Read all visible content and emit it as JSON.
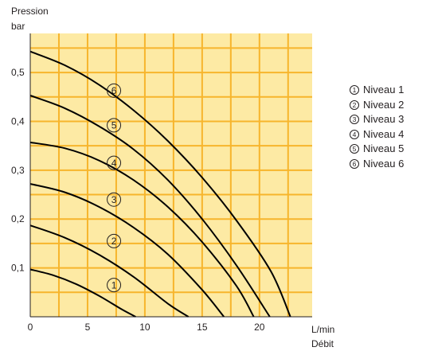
{
  "colors": {
    "plot_background": "#fdeaa4",
    "grid": "#f7b52c",
    "axis": "#231f20",
    "curve": "#000000"
  },
  "chart_data": {
    "type": "line",
    "ylabel_line1": "Pression",
    "ylabel_line2": "bar",
    "xlabel_line1": "L/min",
    "xlabel_line2": "Débit",
    "xlim": [
      0,
      24.6
    ],
    "ylim": [
      0,
      0.58
    ],
    "x_ticks": [
      {
        "value": 0,
        "label": "0"
      },
      {
        "value": 5,
        "label": "5"
      },
      {
        "value": 10,
        "label": "10"
      },
      {
        "value": 15,
        "label": "15"
      },
      {
        "value": 20,
        "label": "20"
      }
    ],
    "y_ticks": [
      {
        "value": 0.1,
        "label": "0,1"
      },
      {
        "value": 0.2,
        "label": "0,2"
      },
      {
        "value": 0.3,
        "label": "0,3"
      },
      {
        "value": 0.4,
        "label": "0,4"
      },
      {
        "value": 0.5,
        "label": "0,5"
      }
    ],
    "grid_x_step": 2.5,
    "grid_y_step": 0.05,
    "grid": true,
    "legend_position": "right",
    "series": [
      {
        "marker": "1",
        "name": "Niveau 1",
        "x": [
          0,
          2,
          4,
          6,
          8,
          9.2
        ],
        "y": [
          0.097,
          0.085,
          0.067,
          0.043,
          0.015,
          0
        ],
        "label_at": [
          7.3,
          0.065
        ]
      },
      {
        "marker": "2",
        "name": "Niveau 2",
        "x": [
          0,
          3,
          6,
          9,
          12,
          13.8
        ],
        "y": [
          0.187,
          0.162,
          0.127,
          0.082,
          0.027,
          0
        ],
        "label_at": [
          7.3,
          0.155
        ]
      },
      {
        "marker": "3",
        "name": "Niveau 3",
        "x": [
          0,
          3,
          6,
          9,
          12,
          15,
          16.9
        ],
        "y": [
          0.272,
          0.255,
          0.225,
          0.183,
          0.128,
          0.055,
          0
        ],
        "label_at": [
          7.3,
          0.24
        ]
      },
      {
        "marker": "4",
        "name": "Niveau 4",
        "x": [
          0,
          3,
          6,
          9,
          12,
          15,
          18,
          19.5
        ],
        "y": [
          0.357,
          0.345,
          0.32,
          0.28,
          0.225,
          0.153,
          0.063,
          0
        ],
        "label_at": [
          7.3,
          0.315
        ]
      },
      {
        "marker": "5",
        "name": "Niveau 5",
        "x": [
          0,
          3,
          6,
          9,
          12,
          15,
          18,
          20.9
        ],
        "y": [
          0.453,
          0.427,
          0.39,
          0.343,
          0.28,
          0.2,
          0.105,
          0
        ],
        "label_at": [
          7.3,
          0.392
        ]
      },
      {
        "marker": "6",
        "name": "Niveau 6",
        "x": [
          0,
          3,
          6,
          9,
          12,
          15,
          18,
          21,
          22.7
        ],
        "y": [
          0.543,
          0.515,
          0.475,
          0.423,
          0.36,
          0.285,
          0.197,
          0.093,
          0
        ],
        "label_at": [
          7.3,
          0.463
        ]
      }
    ]
  }
}
